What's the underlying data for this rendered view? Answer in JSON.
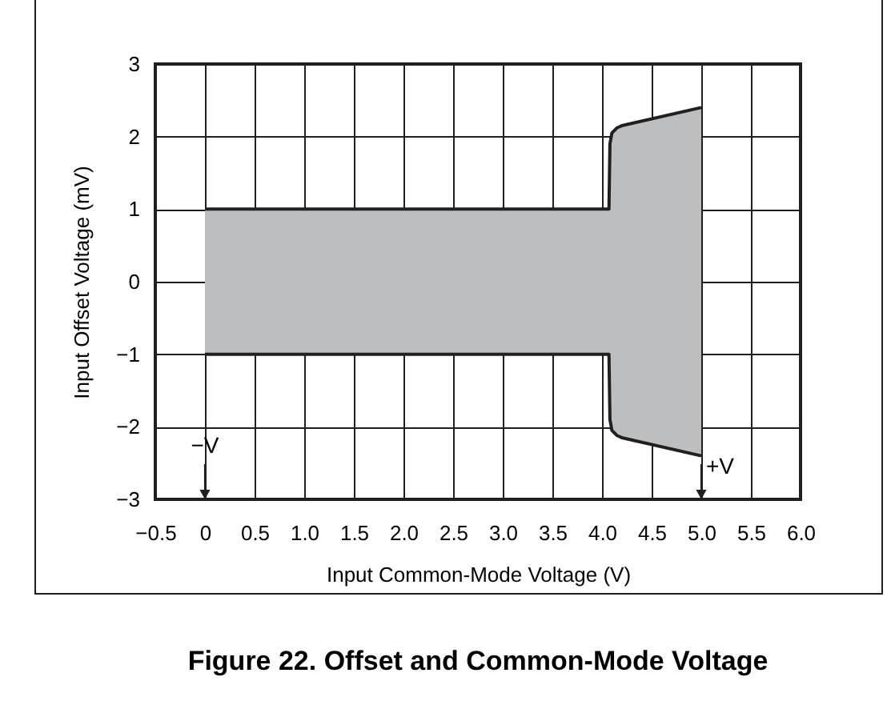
{
  "chart_data": {
    "type": "area",
    "title": "Figure 22.  Offset and Common-Mode Voltage",
    "xlabel": "Input Common-Mode Voltage (V)",
    "ylabel": "Input Offset Voltage (mV)",
    "x": [
      0,
      4.07,
      4.08,
      4.1,
      4.15,
      4.2,
      5.0
    ],
    "series": [
      {
        "color": "#bcbec0",
        "values": [
          1,
          1,
          1.9,
          2.05,
          2.12,
          2.15,
          2.4
        ]
      },
      {
        "color": "#bcbec0",
        "values": [
          -1,
          -1,
          -1.9,
          -2.05,
          -2.12,
          -2.15,
          -2.4
        ]
      }
    ],
    "xlim": [
      -0.5,
      6
    ],
    "xticks": [
      {
        "value": -0.5,
        "label": "−0.5"
      },
      0,
      0.5,
      {
        "value": 1,
        "label": "1.0"
      },
      1.5,
      {
        "value": 2,
        "label": "2.0"
      },
      2.5,
      {
        "value": 3,
        "label": "3.0"
      },
      3.5,
      {
        "value": 4,
        "label": "4.0"
      },
      4.5,
      {
        "value": 5,
        "label": "5.0"
      },
      5.5,
      {
        "value": 6,
        "label": "6.0"
      }
    ],
    "ylim": [
      -3,
      3
    ],
    "yticks": [
      {
        "value": -3,
        "label": "−3"
      },
      {
        "value": -2,
        "label": "−2"
      },
      {
        "value": -1,
        "label": "−1"
      },
      0,
      1,
      2,
      3
    ],
    "grid": true,
    "annotations": [
      "−V",
      "+V"
    ]
  }
}
